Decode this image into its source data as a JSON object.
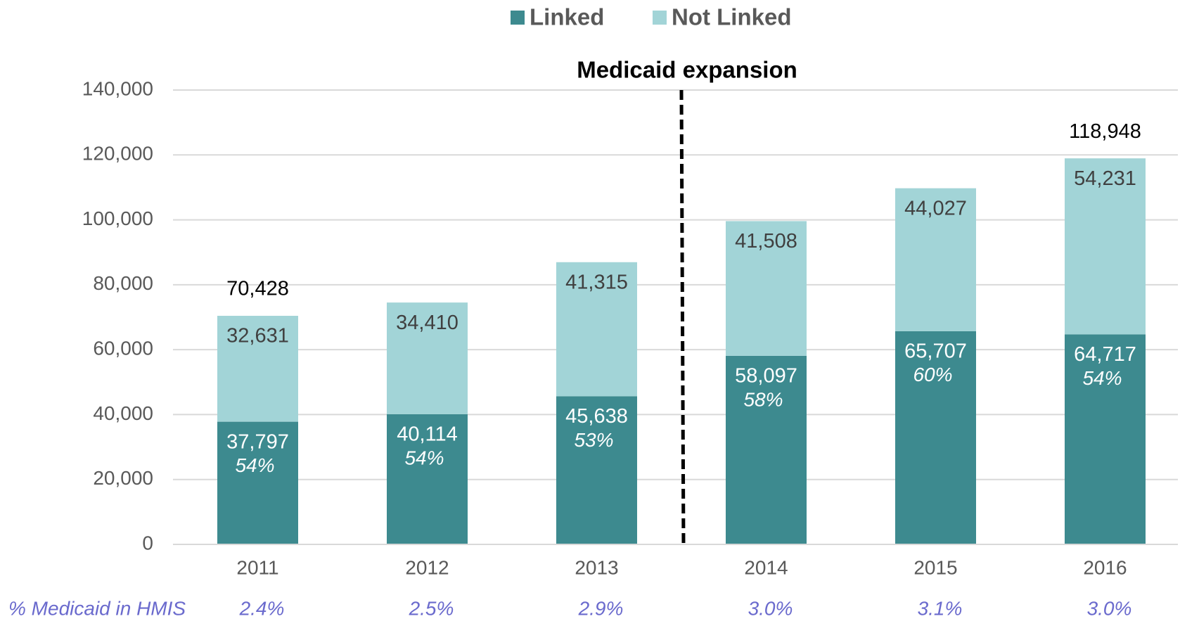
{
  "chart_data": {
    "type": "stacked_bar",
    "annotation": "Medicaid expansion",
    "categories": [
      "2011",
      "2012",
      "2013",
      "2014",
      "2015",
      "2016"
    ],
    "series": [
      {
        "name": "Linked",
        "color": "#3d8a8f",
        "values": [
          37797,
          40114,
          45638,
          58097,
          65707,
          64717
        ],
        "value_labels": [
          "37,797",
          "40,114",
          "45,638",
          "58,097",
          "65,707",
          "64,717"
        ]
      },
      {
        "name": "Not Linked",
        "color": "#a2d4d7",
        "values": [
          32631,
          34410,
          41315,
          41508,
          44027,
          54231
        ],
        "value_labels": [
          "32,631",
          "34,410",
          "41,315",
          "41,508",
          "44,027",
          "54,231"
        ]
      }
    ],
    "linked_share": {
      "values": [
        54,
        54,
        53,
        58,
        60,
        54
      ],
      "value_labels": [
        "54%",
        "54%",
        "53%",
        "58%",
        "60%",
        "54%"
      ]
    },
    "totals": {
      "values": [
        70428,
        null,
        null,
        null,
        null,
        118948
      ],
      "value_labels": [
        "70,428",
        null,
        null,
        null,
        null,
        "118,948"
      ]
    },
    "medicaid_row": {
      "label": "% Medicaid in HMIS",
      "values": [
        2.4,
        2.5,
        2.9,
        3.0,
        3.1,
        3.0
      ],
      "value_labels": [
        "2.4%",
        "2.5%",
        "2.9%",
        "3.0%",
        "3.1%",
        "3.0%"
      ]
    },
    "ylim": [
      0,
      140000
    ],
    "yticks": [
      0,
      {
        "value": 20000,
        "label": "20,000"
      },
      {
        "value": 40000,
        "label": "40,000"
      },
      {
        "value": 60000,
        "label": "60,000"
      },
      {
        "value": 80000,
        "label": "80,000"
      },
      {
        "value": 100000,
        "label": "100,000"
      },
      {
        "value": 120000,
        "label": "120,000"
      },
      {
        "value": 140000,
        "label": "140,000"
      }
    ],
    "grid": true,
    "legend": "top"
  }
}
